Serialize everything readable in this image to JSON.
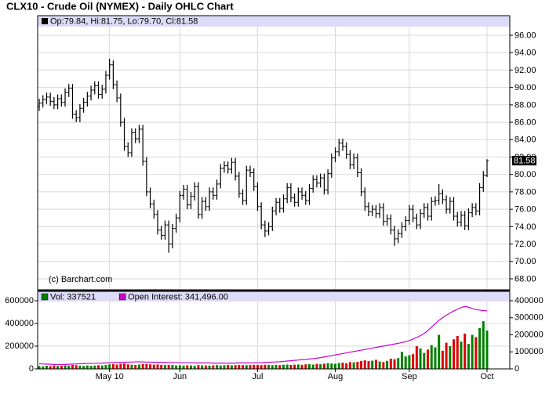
{
  "chart_data": [
    {
      "type": "ohlc",
      "title": "CLX10 - Crude Oil (NYMEX) - Daily OHLC Chart",
      "legend_text": "Op:79.84, Hi:81.75, Lo:79.70, Cl:81.58",
      "copyright": "(c) Barchart.com",
      "color": "#000000",
      "grid": true,
      "ylim": [
        66.74,
        96.99
      ],
      "yticks": [
        {
          "value": 68,
          "label": "68.00"
        },
        {
          "value": 70,
          "label": "70.00"
        },
        {
          "value": 72,
          "label": "72.00"
        },
        {
          "value": 74,
          "label": "74.00"
        },
        {
          "value": 76,
          "label": "76.00"
        },
        {
          "value": 78,
          "label": "78.00"
        },
        {
          "value": 80,
          "label": "80.00"
        },
        {
          "value": 82,
          "label": "82.00"
        },
        {
          "value": 84,
          "label": "84.00"
        },
        {
          "value": 86,
          "label": "86.00"
        },
        {
          "value": 88,
          "label": "88.00"
        },
        {
          "value": 90,
          "label": "90.00"
        },
        {
          "value": 92,
          "label": "92.00"
        },
        {
          "value": 94,
          "label": "94.00"
        },
        {
          "value": 96,
          "label": "96.00"
        }
      ],
      "open": [
        87.8,
        88.2,
        88.6,
        88.9,
        88.4,
        88.0,
        88.7,
        88.3,
        89.4,
        89.9,
        86.9,
        86.5,
        87.6,
        88.3,
        89.0,
        89.7,
        90.2,
        89.2,
        89.8,
        91.4,
        92.6,
        90.3,
        88.8,
        86.0,
        83.2,
        82.5,
        84.8,
        84.1,
        85.2,
        81.5,
        78.0,
        76.6,
        75.4,
        73.6,
        73.0,
        74.2,
        72.0,
        73.8,
        75.0,
        77.6,
        78.3,
        76.5,
        77.5,
        78.6,
        75.4,
        76.9,
        76.3,
        78.0,
        77.6,
        78.9,
        80.7,
        81.0,
        80.6,
        81.4,
        79.8,
        77.8,
        77.0,
        80.5,
        80.2,
        78.6,
        76.3,
        74.2,
        73.5,
        74.0,
        75.8,
        76.8,
        76.1,
        77.2,
        78.5,
        77.3,
        76.8,
        78.0,
        77.6,
        77.0,
        78.4,
        79.4,
        79.0,
        79.6,
        78.2,
        80.1,
        81.9,
        82.6,
        83.6,
        83.2,
        82.3,
        81.1,
        81.9,
        80.2,
        78.0,
        76.3,
        75.7,
        76.0,
        75.5,
        76.2,
        74.6,
        74.9,
        73.6,
        72.6,
        73.2,
        74.0,
        74.7,
        76.0,
        75.0,
        74.2,
        75.5,
        76.2,
        75.2,
        76.9,
        77.0,
        77.8,
        77.1,
        76.0,
        76.9,
        75.2,
        74.5,
        75.3,
        74.1,
        75.6,
        76.2,
        75.8,
        78.5,
        79.84
      ],
      "high": [
        88.7,
        89.1,
        89.4,
        89.4,
        88.9,
        89.2,
        89.2,
        89.9,
        90.4,
        90.4,
        87.4,
        88.1,
        88.8,
        89.5,
        90.2,
        90.7,
        90.7,
        90.3,
        91.9,
        93.3,
        93.1,
        90.8,
        89.3,
        86.5,
        83.7,
        85.3,
        85.3,
        85.7,
        85.7,
        82.0,
        78.5,
        77.1,
        75.9,
        74.1,
        74.7,
        74.7,
        74.3,
        75.5,
        78.1,
        78.8,
        78.8,
        78.0,
        79.1,
        79.1,
        77.4,
        77.4,
        78.5,
        78.5,
        79.4,
        81.2,
        81.5,
        81.5,
        81.9,
        81.9,
        80.3,
        78.3,
        81.0,
        81.0,
        80.7,
        79.1,
        76.8,
        74.7,
        74.5,
        76.3,
        77.3,
        77.3,
        77.7,
        79.0,
        79.0,
        77.8,
        78.5,
        78.5,
        78.1,
        78.9,
        79.9,
        79.9,
        80.1,
        80.1,
        80.6,
        82.4,
        83.1,
        84.1,
        84.1,
        83.7,
        82.8,
        82.4,
        82.4,
        80.7,
        78.5,
        76.8,
        76.5,
        76.5,
        76.7,
        76.7,
        75.4,
        75.4,
        74.1,
        73.7,
        74.5,
        75.2,
        76.5,
        76.5,
        75.5,
        76.0,
        76.7,
        76.7,
        77.4,
        77.5,
        78.9,
        78.3,
        77.6,
        77.4,
        77.4,
        75.7,
        75.8,
        75.8,
        76.1,
        76.7,
        76.7,
        79.0,
        80.4,
        81.75
      ],
      "low": [
        87.3,
        87.7,
        88.1,
        87.9,
        87.5,
        87.5,
        87.8,
        87.8,
        88.9,
        86.4,
        86.0,
        86.0,
        87.1,
        87.8,
        88.5,
        89.2,
        88.7,
        88.7,
        89.3,
        90.9,
        89.8,
        88.3,
        85.5,
        82.7,
        82.0,
        82.0,
        83.6,
        83.6,
        81.0,
        77.5,
        76.1,
        74.9,
        73.1,
        72.5,
        72.5,
        71.0,
        71.5,
        73.3,
        74.5,
        77.1,
        76.0,
        76.0,
        77.0,
        74.9,
        74.9,
        75.8,
        75.8,
        77.1,
        77.1,
        78.4,
        80.2,
        80.1,
        80.1,
        79.3,
        77.3,
        76.5,
        76.5,
        79.7,
        78.1,
        75.8,
        73.7,
        72.8,
        73.0,
        73.5,
        75.3,
        75.6,
        75.6,
        76.7,
        76.8,
        76.3,
        76.3,
        77.1,
        76.5,
        76.5,
        77.9,
        78.5,
        78.5,
        77.7,
        77.7,
        79.6,
        81.4,
        82.1,
        82.7,
        81.8,
        80.6,
        80.6,
        79.7,
        77.5,
        75.8,
        75.2,
        75.2,
        75.0,
        75.0,
        74.1,
        74.1,
        73.1,
        71.8,
        72.1,
        72.7,
        73.5,
        74.2,
        74.5,
        73.7,
        73.7,
        75.0,
        74.7,
        74.7,
        76.4,
        76.5,
        76.6,
        75.5,
        75.5,
        74.7,
        74.0,
        74.0,
        73.6,
        73.6,
        75.1,
        75.3,
        75.3,
        78.0,
        79.7
      ],
      "close": [
        88.2,
        88.6,
        88.9,
        88.4,
        88.0,
        88.7,
        88.3,
        89.4,
        89.9,
        86.9,
        86.5,
        87.6,
        88.3,
        89.0,
        89.7,
        90.2,
        89.2,
        89.8,
        91.4,
        92.6,
        90.3,
        88.8,
        86.0,
        83.2,
        82.5,
        84.8,
        84.1,
        85.2,
        81.5,
        78.0,
        76.6,
        75.4,
        73.6,
        73.0,
        74.2,
        72.0,
        73.8,
        75.0,
        77.6,
        78.3,
        76.5,
        77.5,
        78.6,
        75.4,
        76.9,
        76.3,
        78.0,
        77.6,
        78.9,
        80.7,
        81.0,
        80.6,
        81.4,
        79.8,
        77.8,
        77.0,
        80.5,
        80.2,
        78.6,
        76.3,
        74.2,
        73.5,
        74.0,
        75.8,
        76.8,
        76.1,
        77.2,
        78.5,
        77.3,
        76.8,
        78.0,
        77.6,
        77.0,
        78.4,
        79.4,
        79.0,
        79.6,
        78.2,
        80.1,
        81.9,
        82.6,
        83.6,
        83.2,
        82.3,
        81.1,
        81.9,
        80.2,
        78.0,
        76.3,
        75.7,
        76.0,
        75.5,
        76.2,
        74.6,
        74.9,
        73.6,
        72.6,
        73.2,
        74.0,
        74.7,
        76.0,
        75.0,
        74.2,
        75.5,
        76.2,
        75.2,
        76.9,
        77.0,
        77.8,
        77.1,
        76.0,
        76.9,
        75.2,
        74.5,
        75.3,
        74.1,
        75.6,
        76.2,
        75.8,
        78.5,
        79.9,
        81.58
      ]
    },
    {
      "type": "bar",
      "up_color": "#008000",
      "down_color": "#dd0000",
      "grid": true,
      "categories": [
        null,
        null,
        null,
        null,
        null,
        null,
        null,
        null,
        null,
        null,
        null,
        null,
        null,
        null,
        null,
        null,
        null,
        null,
        null,
        "May 10",
        null,
        null,
        null,
        null,
        null,
        null,
        null,
        null,
        null,
        null,
        null,
        null,
        null,
        null,
        null,
        null,
        null,
        null,
        "Jun",
        null,
        null,
        null,
        null,
        null,
        null,
        null,
        null,
        null,
        null,
        null,
        null,
        null,
        null,
        null,
        null,
        null,
        null,
        null,
        null,
        "Jul",
        null,
        null,
        null,
        null,
        null,
        null,
        null,
        null,
        null,
        null,
        null,
        null,
        null,
        null,
        null,
        null,
        null,
        null,
        null,
        null,
        "Aug",
        null,
        null,
        null,
        null,
        null,
        null,
        null,
        null,
        null,
        null,
        null,
        null,
        null,
        null,
        null,
        null,
        null,
        null,
        null,
        "Sep",
        null,
        null,
        null,
        null,
        null,
        null,
        null,
        null,
        null,
        null,
        null,
        null,
        null,
        null,
        null,
        null,
        null,
        null,
        null,
        null,
        "Oct"
      ],
      "ylim": [
        0,
        600000
      ],
      "yticks": [
        0,
        200000,
        400000,
        600000
      ],
      "y2lim": [
        0,
        400000
      ],
      "y2ticks": [
        0,
        100000,
        200000,
        300000,
        400000
      ],
      "series": [
        {
          "name": "Vol: 337521",
          "color": "#008000",
          "values": [
            25000,
            22000,
            28000,
            24000,
            30000,
            26000,
            27000,
            31000,
            29000,
            35000,
            33000,
            28000,
            26000,
            30000,
            27000,
            29000,
            32000,
            30000,
            34000,
            40000,
            42000,
            38000,
            45000,
            48000,
            40000,
            36000,
            34000,
            38000,
            42000,
            44000,
            40000,
            37000,
            39000,
            35000,
            33000,
            36000,
            34000,
            30000,
            32000,
            29000,
            31000,
            30000,
            28000,
            33000,
            31000,
            30000,
            29000,
            31000,
            33000,
            30000,
            32000,
            34000,
            31000,
            33000,
            35000,
            33000,
            32000,
            34000,
            36000,
            35000,
            33000,
            36000,
            34000,
            32000,
            35000,
            33000,
            36000,
            38000,
            35000,
            37000,
            39000,
            36000,
            40000,
            42000,
            38000,
            44000,
            41000,
            46000,
            50000,
            48000,
            45000,
            52000,
            55000,
            50000,
            60000,
            58000,
            62000,
            70000,
            75000,
            68000,
            72000,
            80000,
            65000,
            60000,
            70000,
            90000,
            85000,
            95000,
            150000,
            110000,
            120000,
            130000,
            200000,
            180000,
            140000,
            170000,
            210000,
            190000,
            300000,
            160000,
            230000,
            200000,
            260000,
            290000,
            240000,
            310000,
            220000,
            300000,
            280000,
            360000,
            420000,
            337521
          ]
        },
        {
          "name": "Open Interest: 341,496.00",
          "color": "#cc00cc",
          "axis": "y2",
          "values": [
            30000,
            29000,
            28000,
            27000,
            26000,
            25000,
            25000,
            26000,
            27000,
            28000,
            29000,
            30000,
            31000,
            32000,
            32000,
            33000,
            33000,
            34000,
            35000,
            36000,
            37000,
            38000,
            38000,
            39000,
            40000,
            40000,
            41000,
            41000,
            41000,
            40000,
            40000,
            39000,
            39000,
            38000,
            38000,
            37000,
            37000,
            37000,
            36000,
            36000,
            36000,
            36000,
            35000,
            35000,
            35000,
            35000,
            35000,
            34000,
            34000,
            34000,
            34000,
            34000,
            34000,
            34000,
            35000,
            35000,
            35000,
            35000,
            36000,
            36000,
            37000,
            38000,
            39000,
            40000,
            41000,
            42000,
            44000,
            46000,
            48000,
            50000,
            52000,
            54000,
            56000,
            58000,
            60000,
            63000,
            66000,
            70000,
            74000,
            78000,
            82000,
            86000,
            90000,
            94000,
            98000,
            102000,
            106000,
            110000,
            114000,
            118000,
            122000,
            126000,
            130000,
            134000,
            138000,
            142000,
            146000,
            150000,
            155000,
            160000,
            166000,
            175000,
            185000,
            195000,
            208000,
            225000,
            245000,
            265000,
            285000,
            300000,
            315000,
            328000,
            340000,
            350000,
            360000,
            366000,
            362000,
            355000,
            348000,
            345000,
            342000,
            341496
          ]
        }
      ]
    }
  ]
}
